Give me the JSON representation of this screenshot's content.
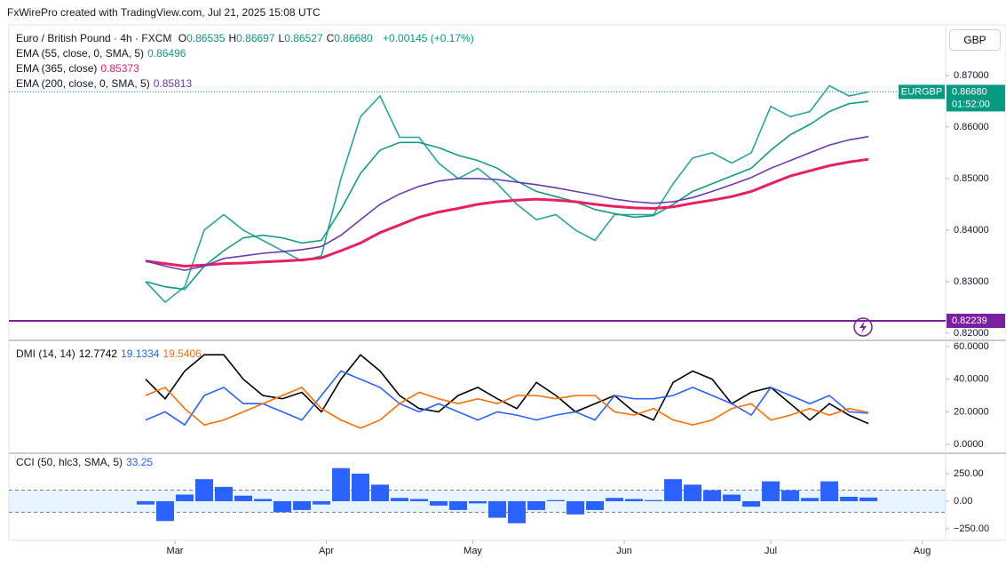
{
  "header": {
    "text": "FxWirePro created with TradingView.com, Jul 21, 2025 15:08 UTC"
  },
  "chart_data": [
    {
      "type": "line",
      "title": "Euro / British Pound · 4h · FXCM",
      "currency": "GBP",
      "ohlc": [
        {
          "key": "O",
          "text": "0.86535"
        },
        {
          "key": "H",
          "text": "0.86697"
        },
        {
          "key": "L",
          "text": "0.86527"
        },
        {
          "key": "C",
          "text": "0.86680"
        }
      ],
      "change": "+0.00145 (+0.17%)",
      "x": [
        54,
        58,
        62,
        66,
        70,
        74,
        78,
        82,
        86,
        90,
        94,
        98,
        102,
        106,
        110,
        114,
        118,
        122,
        126,
        130,
        134,
        138,
        142,
        146,
        150,
        154,
        158,
        162,
        166,
        170,
        174,
        178,
        182,
        186,
        190,
        194,
        198,
        202
      ],
      "xlim": [
        26,
        217.8
      ],
      "ylim": [
        0.8186,
        0.8798
      ],
      "yticks": [
        {
          "value": 0.82,
          "label": "0.82000"
        },
        {
          "value": 0.83,
          "label": "0.83000"
        },
        {
          "value": 0.84,
          "label": "0.84000"
        },
        {
          "value": 0.85,
          "label": "0.85000"
        },
        {
          "value": 0.86,
          "label": "0.86000"
        },
        {
          "value": 0.87,
          "label": "0.87000"
        }
      ],
      "last_price": {
        "symbol": "EURGBP",
        "value": 0.8668,
        "label": "0.86680",
        "countdown": "01:52:00",
        "color": "#089981"
      },
      "alert": {
        "value": 0.82239,
        "label": "0.82239",
        "color": "#7b1fa2"
      },
      "series": [
        {
          "color": "#26a69a",
          "values": [
            0.83,
            0.826,
            0.829,
            0.84,
            0.843,
            0.84,
            0.838,
            0.836,
            0.834,
            0.835,
            0.85,
            0.862,
            0.866,
            0.858,
            0.858,
            0.853,
            0.85,
            0.852,
            0.849,
            0.845,
            0.842,
            0.843,
            0.84,
            0.838,
            0.843,
            0.843,
            0.843,
            0.849,
            0.854,
            0.855,
            0.853,
            0.855,
            0.864,
            0.862,
            0.863,
            0.868,
            0.866,
            0.8668
          ]
        },
        {
          "name": "EMA (55, close, 0, SMA, 5)",
          "last_label": "0.86496",
          "color": "#139c7f",
          "values": [
            0.83,
            0.829,
            0.8285,
            0.833,
            0.836,
            0.8385,
            0.839,
            0.8385,
            0.8375,
            0.838,
            0.844,
            0.851,
            0.8555,
            0.857,
            0.857,
            0.856,
            0.8545,
            0.8535,
            0.852,
            0.8495,
            0.8475,
            0.8465,
            0.8455,
            0.844,
            0.8432,
            0.8425,
            0.8428,
            0.845,
            0.8475,
            0.849,
            0.8505,
            0.852,
            0.8555,
            0.8585,
            0.8605,
            0.863,
            0.8645,
            0.86496
          ]
        },
        {
          "name": "EMA (365, close)",
          "last_label": "0.85373",
          "color": "#e91e63",
          "values": [
            0.834,
            0.8335,
            0.833,
            0.8332,
            0.8335,
            0.8336,
            0.8338,
            0.834,
            0.8342,
            0.8346,
            0.836,
            0.8375,
            0.8395,
            0.841,
            0.8425,
            0.8435,
            0.8442,
            0.845,
            0.8455,
            0.8458,
            0.846,
            0.8458,
            0.8455,
            0.845,
            0.8446,
            0.8443,
            0.8442,
            0.8445,
            0.8452,
            0.8458,
            0.8465,
            0.8475,
            0.849,
            0.8505,
            0.8515,
            0.8525,
            0.8532,
            0.85373
          ]
        },
        {
          "name": "EMA (200, close, 0, SMA, 5)",
          "last_label": "0.85813",
          "color": "#673ab7",
          "values": [
            0.834,
            0.833,
            0.8322,
            0.833,
            0.8345,
            0.835,
            0.8355,
            0.8358,
            0.8362,
            0.8368,
            0.839,
            0.842,
            0.845,
            0.847,
            0.8485,
            0.8495,
            0.85,
            0.85,
            0.8498,
            0.8493,
            0.8488,
            0.8482,
            0.8475,
            0.8468,
            0.846,
            0.8455,
            0.8452,
            0.8455,
            0.8463,
            0.8475,
            0.8488,
            0.8502,
            0.852,
            0.8535,
            0.855,
            0.8565,
            0.8575,
            0.85813
          ]
        }
      ]
    },
    {
      "type": "line",
      "title": "DMI (14, 14)",
      "ylim": [
        -5.4,
        63.8
      ],
      "yticks": [
        {
          "value": 0,
          "label": "0.0000"
        },
        {
          "value": 20,
          "label": "20.0000"
        },
        {
          "value": 40,
          "label": "40.0000"
        },
        {
          "value": 60,
          "label": "60.0000"
        }
      ],
      "series": [
        {
          "last_label": "12.7742",
          "color": "#000000",
          "values": [
            40,
            28,
            45,
            55,
            55,
            40,
            30,
            28,
            32,
            20,
            40,
            55,
            45,
            30,
            22,
            20,
            30,
            35,
            28,
            22,
            38,
            30,
            20,
            25,
            30,
            20,
            15,
            38,
            45,
            40,
            25,
            32,
            35,
            25,
            15,
            25,
            18,
            12.7742
          ]
        },
        {
          "last_label": "19.1334",
          "color": "#2962ff",
          "values": [
            15,
            20,
            12,
            30,
            35,
            25,
            25,
            20,
            15,
            30,
            45,
            40,
            35,
            25,
            20,
            25,
            20,
            15,
            20,
            18,
            15,
            18,
            20,
            15,
            30,
            28,
            28,
            30,
            35,
            30,
            25,
            18,
            35,
            30,
            25,
            30,
            20,
            19.1334
          ]
        },
        {
          "last_label": "19.5406",
          "color": "#ff6d00",
          "values": [
            30,
            35,
            22,
            12,
            15,
            20,
            25,
            30,
            35,
            22,
            15,
            10,
            15,
            25,
            32,
            28,
            25,
            28,
            25,
            30,
            30,
            28,
            30,
            30,
            20,
            18,
            22,
            15,
            12,
            15,
            22,
            25,
            15,
            18,
            22,
            18,
            22,
            19.5406
          ]
        }
      ]
    },
    {
      "type": "bar",
      "title": "CCI (50, hlc3, SMA, 5)",
      "last_label": "33.25",
      "color": "#2962ff",
      "values": [
        -30,
        -180,
        60,
        200,
        130,
        50,
        20,
        -100,
        -80,
        -30,
        300,
        250,
        150,
        30,
        20,
        -40,
        -80,
        -20,
        -150,
        -200,
        -80,
        10,
        -120,
        -80,
        30,
        20,
        10,
        200,
        150,
        100,
        60,
        -50,
        180,
        100,
        30,
        180,
        40,
        33.25
      ],
      "band": [
        -100,
        100
      ],
      "ylim": [
        -355,
        435
      ],
      "yticks": [
        {
          "value": -250,
          "label": "−250.00"
        },
        {
          "value": 0,
          "label": "0.00"
        },
        {
          "value": 250,
          "label": "250.00"
        }
      ],
      "xticks": [
        {
          "value": 60,
          "label": "Mar"
        },
        {
          "value": 91,
          "label": "Apr"
        },
        {
          "value": 121,
          "label": "May"
        },
        {
          "value": 152,
          "label": "Jun"
        },
        {
          "value": 182,
          "label": "Jul"
        },
        {
          "value": 213,
          "label": "Aug"
        }
      ]
    }
  ]
}
